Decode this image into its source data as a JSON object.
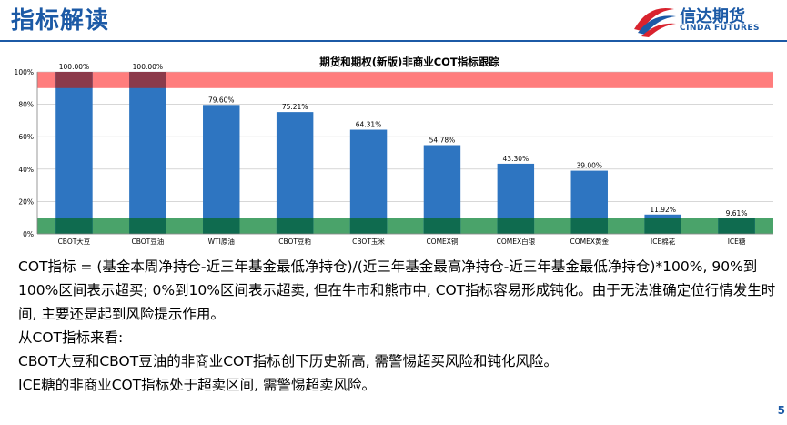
{
  "header": {
    "title": "指标解读"
  },
  "logo": {
    "name_cn": "信达期货",
    "name_en": "CINDA FUTURES"
  },
  "colors": {
    "brand": "#1c5aa6",
    "bar": "#2e75c1",
    "overbought": "#ff7d7d",
    "oversold": "#4aa36a",
    "bar_in_overbought": "#8b3a4a",
    "bar_in_oversold": "#0f6b4f"
  },
  "chart_data": {
    "type": "bar",
    "title": "期货和期权(新版)非商业COT指标跟踪",
    "categories": [
      "CBOT大豆",
      "CBOT豆油",
      "WTI原油",
      "CBOT豆粕",
      "CBOT玉米",
      "COMEX铜",
      "COMEX白银",
      "COMEX黄金",
      "ICE棉花",
      "ICE糖"
    ],
    "values": [
      100.0,
      100.0,
      79.6,
      75.21,
      64.31,
      54.78,
      43.3,
      39.0,
      11.92,
      9.61
    ],
    "value_labels": [
      "100.00%",
      "100.00%",
      "79.60%",
      "75.21%",
      "64.31%",
      "54.78%",
      "43.30%",
      "39.00%",
      "11.92%",
      "9.61%"
    ],
    "y_ticks": [
      0,
      20,
      40,
      60,
      80,
      100
    ],
    "y_tick_labels": [
      "0%",
      "20%",
      "40%",
      "60%",
      "80%",
      "100%"
    ],
    "ylim": [
      0,
      100
    ],
    "bands": [
      {
        "from": 90,
        "to": 100
      },
      {
        "from": 0,
        "to": 10
      }
    ],
    "grid": true
  },
  "text": {
    "line1": "COT指标 = (基金本周净持仓-近三年基金最低净持仓)/(近三年基金最高净持仓-近三年基金最低净持仓)*100%, 90%到100%区间表示超买; 0%到10%区间表示超卖, 但在牛市和熊市中, COT指标容易形成钝化。由于无法准确定位行情发生时间, 主要还是起到风险提示作用。",
    "line2": "从COT指标来看:",
    "line3": "CBOT大豆和CBOT豆油的非商业COT指标创下历史新高, 需警惕超买风险和钝化风险。",
    "line4": "ICE糖的非商业COT指标处于超卖区间, 需警惕超卖风险。"
  },
  "page_number": "5"
}
